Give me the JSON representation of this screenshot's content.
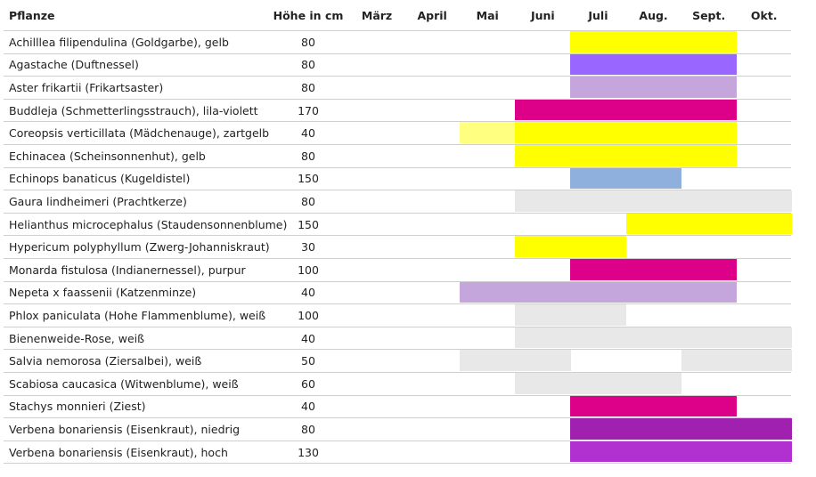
{
  "table": {
    "header": [
      "Pflanze",
      "Höhe in cm",
      "März",
      "April",
      "Mai",
      "Juni",
      "Juli",
      "Aug.",
      "Sept.",
      "Okt."
    ],
    "rows": [
      {
        "name": "Achilllea filipendulina (Goldgarbe), gelb",
        "height": "80",
        "bloom": [
          null,
          null,
          null,
          null,
          "#ffff00",
          "#ffff00",
          "#ffff00",
          null
        ]
      },
      {
        "name": "Agastache (Duftnessel)",
        "height": "80",
        "bloom": [
          null,
          null,
          null,
          null,
          "#9966ff",
          "#9966ff",
          "#9966ff",
          null
        ]
      },
      {
        "name": "Aster frikartii (Frikartsaster)",
        "height": "80",
        "bloom": [
          null,
          null,
          null,
          null,
          "#c4a6dc",
          "#c4a6dc",
          "#c4a6dc",
          null
        ]
      },
      {
        "name": "Buddleja (Schmetterlingsstrauch), lila-violett",
        "height": "170",
        "bloom": [
          null,
          null,
          null,
          "#dd0088",
          "#dd0088",
          "#dd0088",
          "#dd0088",
          null
        ]
      },
      {
        "name": "Coreopsis verticillata (Mädchenauge), zartgelb",
        "height": "40",
        "bloom": [
          null,
          null,
          "#ffff80",
          "#ffff00",
          "#ffff00",
          "#ffff00",
          "#ffff00",
          null
        ]
      },
      {
        "name": "Echinacea (Scheinsonnenhut), gelb",
        "height": "80",
        "bloom": [
          null,
          null,
          null,
          "#ffff00",
          "#ffff00",
          "#ffff00",
          "#ffff00",
          null
        ]
      },
      {
        "name": "Echinops banaticus (Kugeldistel)",
        "height": "150",
        "bloom": [
          null,
          null,
          null,
          null,
          "#8fb0dc",
          "#8fb0dc",
          null,
          null
        ]
      },
      {
        "name": "Gaura lindheimeri (Prachtkerze)",
        "height": "80",
        "bloom": [
          null,
          null,
          null,
          "#e8e8e8",
          "#e8e8e8",
          "#e8e8e8",
          "#e8e8e8",
          "#e8e8e8"
        ]
      },
      {
        "name": "Helianthus microcephalus (Staudensonnenblume)",
        "height": "150",
        "bloom": [
          null,
          null,
          null,
          null,
          null,
          "#ffff00",
          "#ffff00",
          "#ffff00"
        ]
      },
      {
        "name": "Hypericum polyphyllum (Zwerg-Johanniskraut)",
        "height": "30",
        "bloom": [
          null,
          null,
          null,
          "#ffff00",
          "#ffff00",
          null,
          null,
          null
        ]
      },
      {
        "name": "Monarda fistulosa (Indianernessel), purpur",
        "height": "100",
        "bloom": [
          null,
          null,
          null,
          null,
          "#dd0088",
          "#dd0088",
          "#dd0088",
          null
        ]
      },
      {
        "name": "Nepeta x faassenii (Katzenminze)",
        "height": "40",
        "bloom": [
          null,
          null,
          "#c4a6dc",
          "#c4a6dc",
          "#c4a6dc",
          "#c4a6dc",
          "#c4a6dc",
          null
        ]
      },
      {
        "name": "Phlox paniculata (Hohe Flammenblume), weiß",
        "height": "100",
        "bloom": [
          null,
          null,
          null,
          "#e8e8e8",
          "#e8e8e8",
          null,
          null,
          null
        ]
      },
      {
        "name": "Bienenweide-Rose, weiß",
        "height": "40",
        "bloom": [
          null,
          null,
          null,
          "#e8e8e8",
          "#e8e8e8",
          "#e8e8e8",
          "#e8e8e8",
          "#e8e8e8"
        ]
      },
      {
        "name": "Salvia nemorosa (Ziersalbei), weiß",
        "height": "50",
        "bloom": [
          null,
          null,
          "#e8e8e8",
          "#e8e8e8",
          null,
          null,
          "#e8e8e8",
          "#e8e8e8"
        ]
      },
      {
        "name": "Scabiosa caucasica (Witwenblume), weiß",
        "height": "60",
        "bloom": [
          null,
          null,
          null,
          "#e8e8e8",
          "#e8e8e8",
          "#e8e8e8",
          null,
          null
        ]
      },
      {
        "name": "Stachys monnieri (Ziest)",
        "height": "40",
        "bloom": [
          null,
          null,
          null,
          null,
          "#dd0088",
          "#dd0088",
          "#dd0088",
          null
        ]
      },
      {
        "name": "Verbena bonariensis (Eisenkraut), niedrig",
        "height": "80",
        "bloom": [
          null,
          null,
          null,
          null,
          "#a020b0",
          "#a020b0",
          "#a020b0",
          "#a020b0"
        ]
      },
      {
        "name": "Verbena bonariensis (Eisenkraut), hoch",
        "height": "130",
        "bloom": [
          null,
          null,
          null,
          null,
          "#b030d0",
          "#b030d0",
          "#b030d0",
          "#b030d0"
        ]
      }
    ]
  }
}
